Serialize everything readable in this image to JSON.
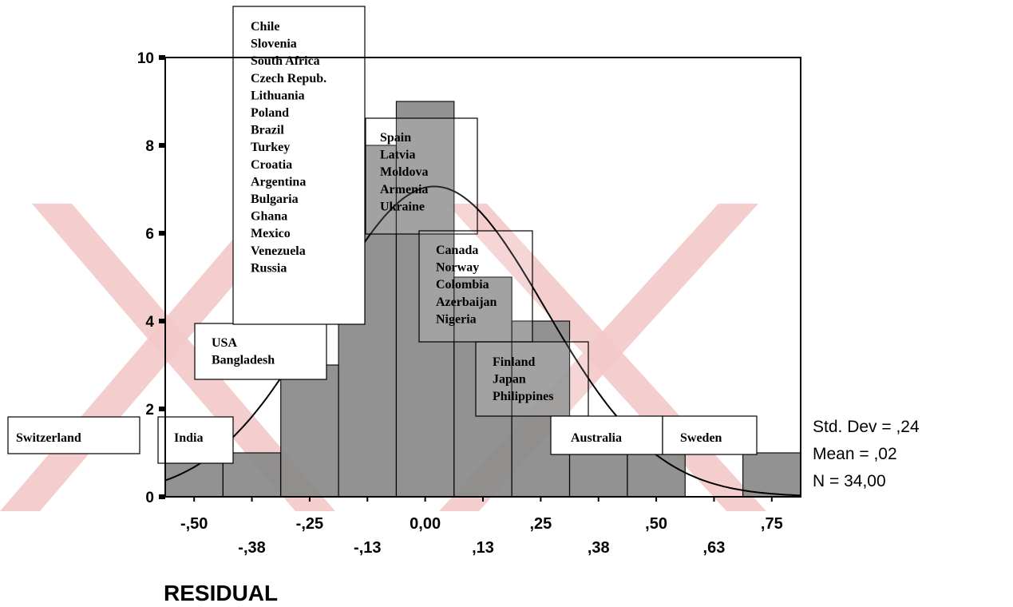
{
  "chart_data": {
    "type": "bar",
    "subtype": "histogram",
    "xlabel": "RESIDUAL",
    "ylabel": "",
    "title": "",
    "ylim": [
      0,
      10
    ],
    "yticks": [
      0,
      2,
      4,
      6,
      8,
      10
    ],
    "xlim": [
      -0.5625,
      0.8125
    ],
    "bin_width": 0.125,
    "bins": [
      {
        "center": -0.5,
        "count": 1
      },
      {
        "center": -0.375,
        "count": 1
      },
      {
        "center": -0.25,
        "count": 3
      },
      {
        "center": -0.125,
        "count": 8
      },
      {
        "center": 0.0,
        "count": 9
      },
      {
        "center": 0.125,
        "count": 5
      },
      {
        "center": 0.25,
        "count": 4
      },
      {
        "center": 0.375,
        "count": 1
      },
      {
        "center": 0.5,
        "count": 1
      },
      {
        "center": 0.625,
        "count": 0
      },
      {
        "center": 0.75,
        "count": 1
      }
    ],
    "xticks_upper": [
      {
        "value": -0.5,
        "label": "-,50"
      },
      {
        "value": -0.25,
        "label": "-,25"
      },
      {
        "value": 0.0,
        "label": "0,00"
      },
      {
        "value": 0.25,
        "label": ",25"
      },
      {
        "value": 0.5,
        "label": ",50"
      },
      {
        "value": 0.75,
        "label": ",75"
      }
    ],
    "xticks_lower": [
      {
        "value": -0.375,
        "label": "-,38"
      },
      {
        "value": -0.125,
        "label": "-,13"
      },
      {
        "value": 0.125,
        "label": ",13"
      },
      {
        "value": 0.375,
        "label": ",38"
      },
      {
        "value": 0.625,
        "label": ",63"
      }
    ],
    "normal_curve": {
      "mean": 0.02,
      "std": 0.24,
      "n": 34
    },
    "stats": [
      "Std. Dev = ,24",
      "Mean = ,02",
      "N = 34,00"
    ],
    "bar_color": "#8a8a8a",
    "watermark_color": "#f3c9c9",
    "annotations": [
      {
        "id": "switzerland",
        "lines": [
          "Switzerland"
        ]
      },
      {
        "id": "india",
        "lines": [
          "India"
        ]
      },
      {
        "id": "usa",
        "lines": [
          "USA",
          "Bangladesh"
        ]
      },
      {
        "id": "center",
        "lines": [
          "Chile",
          "Slovenia",
          "South Africa",
          "Czech Repub.",
          "Lithuania",
          "Poland",
          "Brazil",
          "Turkey",
          "Croatia",
          "Argentina",
          "Bulgaria",
          "Ghana",
          "Mexico",
          "Venezuela",
          "Russia"
        ]
      },
      {
        "id": "spain",
        "lines": [
          "Spain",
          "Latvia",
          "Moldova",
          "Armenia",
          "Ukraine"
        ]
      },
      {
        "id": "canada",
        "lines": [
          "Canada",
          "Norway",
          "Colombia",
          "Azerbaijan",
          "Nigeria"
        ]
      },
      {
        "id": "finland",
        "lines": [
          "Finland",
          "Japan",
          "Philippines"
        ]
      },
      {
        "id": "australia",
        "lines": [
          "Australia"
        ]
      },
      {
        "id": "sweden",
        "lines": [
          "Sweden"
        ]
      }
    ]
  }
}
